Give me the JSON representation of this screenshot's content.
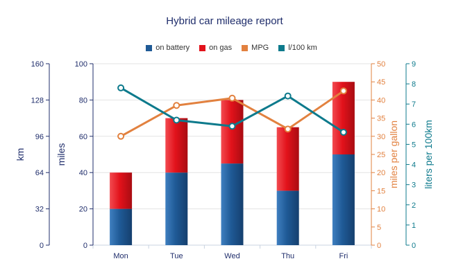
{
  "chart_data": {
    "type": "bar",
    "title": "Hybrid car mileage report",
    "categories": [
      "Mon",
      "Tue",
      "Wed",
      "Thu",
      "Fri"
    ],
    "series": [
      {
        "name": "on battery",
        "kind": "stacked-bar",
        "axis": "miles",
        "color": "#1f5a96",
        "values": [
          20,
          40,
          45,
          30,
          50
        ]
      },
      {
        "name": "on gas",
        "kind": "stacked-bar",
        "axis": "miles",
        "color": "#e2121b",
        "values": [
          20,
          30,
          35,
          35,
          40
        ]
      },
      {
        "name": "MPG",
        "kind": "line",
        "axis": "mpg",
        "color": "#e2813f",
        "values": [
          30,
          38.5,
          40.5,
          32,
          42.5
        ]
      },
      {
        "name": "l/100 km",
        "kind": "line",
        "axis": "l100",
        "color": "#0d7a8c",
        "values": [
          7.8,
          6.2,
          5.9,
          7.4,
          5.6
        ]
      }
    ],
    "axes": {
      "km": {
        "title": "km",
        "side": "left-outer",
        "color": "#1f2d6b",
        "range": [
          0,
          160
        ],
        "ticks": [
          "0",
          "32",
          "64",
          "96",
          "128",
          "160"
        ]
      },
      "miles": {
        "title": "miles",
        "side": "left-inner",
        "color": "#1f2d6b",
        "range": [
          0,
          100
        ],
        "ticks": [
          "0",
          "20",
          "40",
          "60",
          "80",
          "100"
        ]
      },
      "mpg": {
        "title": "miles per gallon",
        "side": "right-inner",
        "color": "#e2813f",
        "range": [
          0,
          50
        ],
        "ticks": [
          "0",
          "5",
          "10",
          "15",
          "20",
          "25",
          "30",
          "35",
          "40",
          "45",
          "50"
        ]
      },
      "l100": {
        "title": "liters per 100km",
        "side": "right-outer",
        "color": "#0d7a8c",
        "range": [
          0,
          9
        ],
        "ticks": [
          "0",
          "1",
          "2",
          "3",
          "4",
          "5",
          "6",
          "7",
          "8",
          "9"
        ]
      }
    },
    "grid": true,
    "legend_position": "top-center"
  }
}
